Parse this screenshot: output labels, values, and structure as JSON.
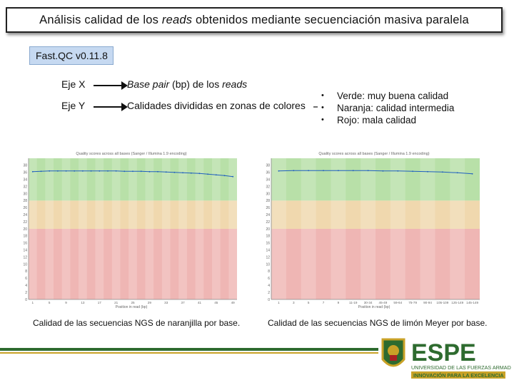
{
  "slide": {
    "title_pre": "Análisis calidad de los ",
    "title_em": "reads",
    "title_post": " obtenidos mediante secuenciación masiva paralela",
    "tag": "Fast.QC v0.11.8",
    "x_axis": {
      "label": "Eje X",
      "desc_em": "Base pair",
      "desc_mid": " (bp) de los ",
      "desc_em2": "reads"
    },
    "y_axis": {
      "label": "Eje Y",
      "desc": "Calidades divididas en zonas de colores"
    },
    "legend": [
      {
        "bullet": "•",
        "text": "Verde:  muy buena calidad"
      },
      {
        "bullet": "•",
        "text": "Naranja:  calidad intermedia"
      },
      {
        "bullet": "•",
        "text": "Rojo:  mala calidad"
      }
    ],
    "captions": {
      "left": "Calidad de las secuencias NGS de naranjilla por base.",
      "right": "Calidad de las secuencias NGS de limón Meyer por base."
    }
  },
  "colors": {
    "green": "#b8e0a8",
    "orange": "#f0d8ae",
    "red": "#efb6b4",
    "tag_bg": "#c6d9f1",
    "espe_green": "#2e6b2f",
    "espe_gold": "#c9a227"
  },
  "logo": {
    "wordmark": "ESPE",
    "line1": "UNIVERSIDAD DE LAS FUERZAS ARMADAS",
    "line2": "INNOVACIÓN PARA LA EXCELENCIA"
  },
  "chart_data": [
    {
      "type": "line",
      "title": "Quality scores across all bases (Sanger / Illumina 1.9 encoding)",
      "xlabel": "Position in read (bp)",
      "y_ticks": [
        0,
        2,
        4,
        6,
        8,
        10,
        12,
        14,
        16,
        18,
        20,
        22,
        24,
        26,
        28,
        30,
        32,
        34,
        36,
        38
      ],
      "ylim": [
        0,
        40
      ],
      "x": [
        "1",
        "3",
        "5",
        "7",
        "9",
        "11",
        "13",
        "15",
        "17",
        "19",
        "21",
        "23",
        "25",
        "27",
        "29",
        "31",
        "33",
        "35",
        "37",
        "39",
        "41",
        "43",
        "45",
        "47",
        "49"
      ],
      "series": [
        {
          "values": [
            36.2,
            36.3,
            36.4,
            36.4,
            36.4,
            36.4,
            36.4,
            36.4,
            36.4,
            36.4,
            36.4,
            36.3,
            36.3,
            36.3,
            36.2,
            36.2,
            36.1,
            36.0,
            35.9,
            35.8,
            35.7,
            35.5,
            35.3,
            35.1,
            34.8
          ]
        }
      ],
      "zones": {
        "green": [
          28,
          40
        ],
        "orange": [
          20,
          28
        ],
        "red": [
          0,
          20
        ]
      }
    },
    {
      "type": "line",
      "title": "Quality scores across all bases (Sanger / Illumina 1.9 encoding)",
      "xlabel": "Position in read (bp)",
      "y_ticks": [
        0,
        2,
        4,
        6,
        8,
        10,
        12,
        14,
        16,
        18,
        20,
        22,
        24,
        26,
        28,
        30,
        32,
        34,
        36,
        38
      ],
      "ylim": [
        0,
        40
      ],
      "x": [
        "1",
        "3",
        "5",
        "7",
        "9",
        "11-19",
        "30-34",
        "45-49",
        "59-64",
        "75-79",
        "90-94",
        "105-109",
        "125-149",
        "145-149"
      ],
      "series": [
        {
          "values": [
            36.4,
            36.5,
            36.5,
            36.5,
            36.5,
            36.5,
            36.5,
            36.4,
            36.4,
            36.3,
            36.2,
            36.1,
            35.9,
            35.6
          ]
        }
      ],
      "zones": {
        "green": [
          28,
          40
        ],
        "orange": [
          20,
          28
        ],
        "red": [
          0,
          20
        ]
      }
    }
  ]
}
